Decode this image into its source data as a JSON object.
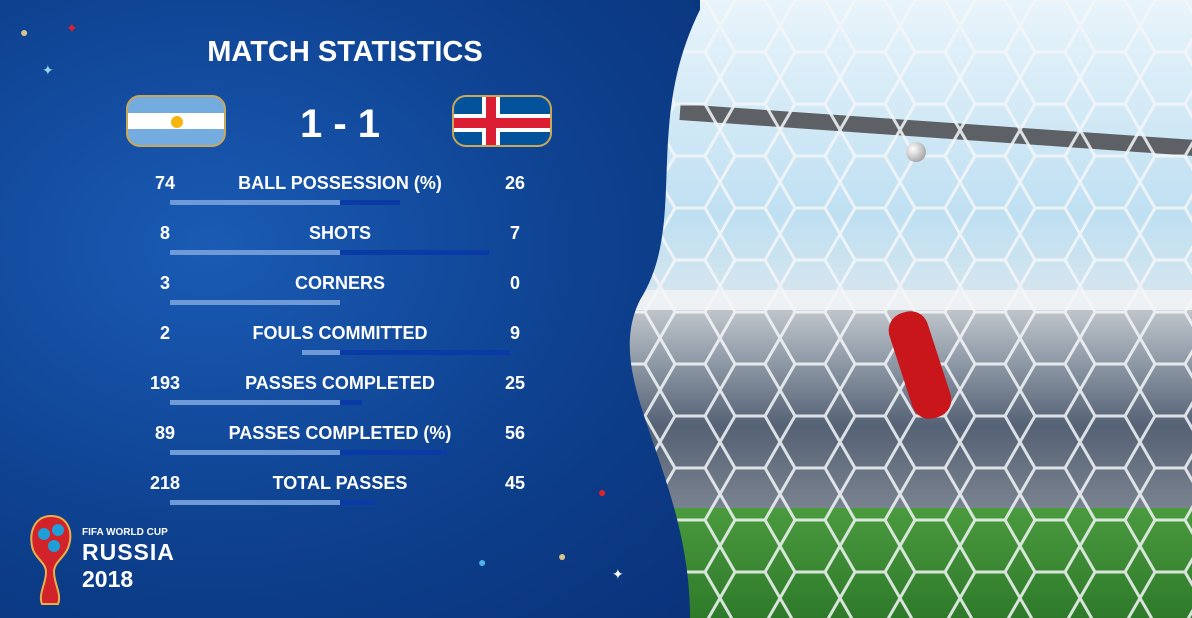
{
  "title": "MATCH STATISTICS",
  "score": "1 - 1",
  "teams": {
    "home": {
      "flag": "argentina-flag"
    },
    "away": {
      "flag": "iceland-flag"
    }
  },
  "stats": [
    {
      "label": "BALL POSSESSION (%)",
      "home": "74",
      "away": "26"
    },
    {
      "label": "SHOTS",
      "home": "8",
      "away": "7"
    },
    {
      "label": "CORNERS",
      "home": "3",
      "away": "0"
    },
    {
      "label": "FOULS COMMITTED",
      "home": "2",
      "away": "9"
    },
    {
      "label": "PASSES COMPLETED",
      "home": "193",
      "away": "25"
    },
    {
      "label": "PASSES COMPLETED (%)",
      "home": "89",
      "away": "56"
    },
    {
      "label": "TOTAL PASSES",
      "home": "218",
      "away": "45"
    }
  ],
  "colors": {
    "home_bar": "#6f9ad8",
    "away_bar": "#0a3aa6",
    "background": "#0d3f8c"
  },
  "logo": {
    "line1": "FIFA WORLD CUP",
    "line2": "RUSSIA",
    "line3": "2018"
  }
}
